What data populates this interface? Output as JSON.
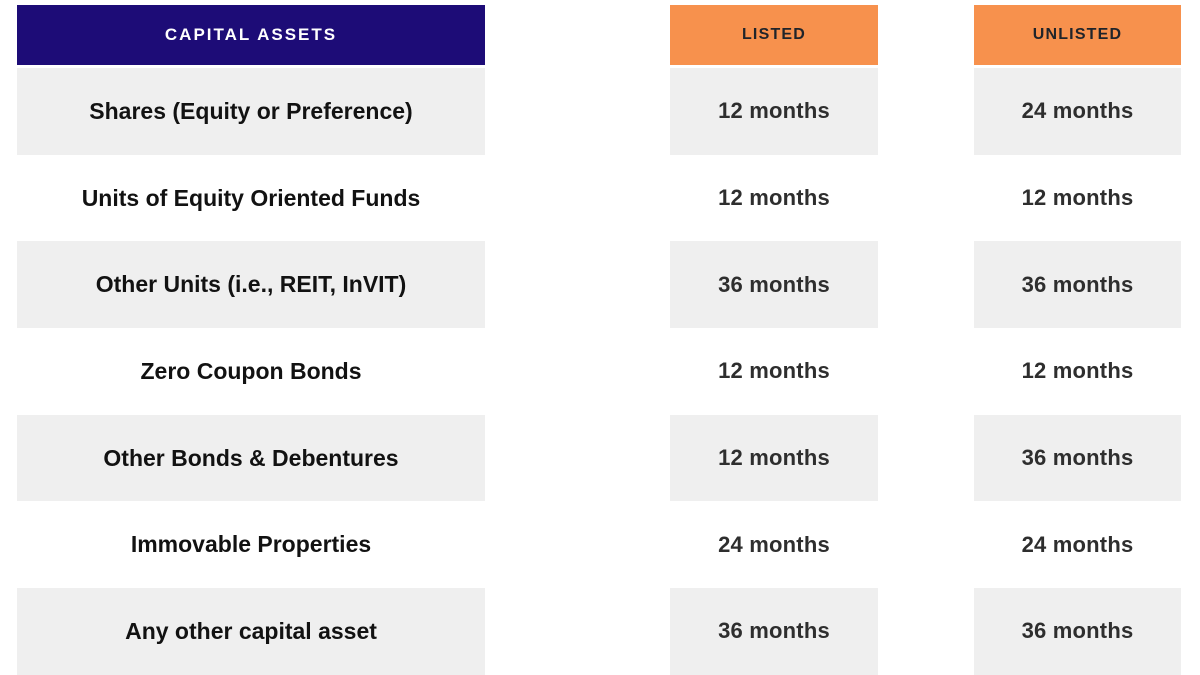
{
  "table": {
    "header": {
      "assets": "CAPITAL ASSETS",
      "listed": "LISTED",
      "unlisted": "UNLISTED"
    },
    "rows": [
      {
        "asset": "Shares (Equity or Preference)",
        "listed": "12 months",
        "unlisted": "24 months"
      },
      {
        "asset": "Units of Equity Oriented Funds",
        "listed": "12 months",
        "unlisted": "12 months"
      },
      {
        "asset": "Other Units (i.e., REIT, InVIT)",
        "listed": "36 months",
        "unlisted": "36 months"
      },
      {
        "asset": "Zero Coupon Bonds",
        "listed": "12 months",
        "unlisted": "12 months"
      },
      {
        "asset": "Other Bonds & Debentures",
        "listed": "12 months",
        "unlisted": "36 months"
      },
      {
        "asset": "Immovable Properties",
        "listed": "24 months",
        "unlisted": "24 months"
      },
      {
        "asset": "Any other capital asset",
        "listed": "36 months",
        "unlisted": "36 months"
      }
    ]
  },
  "colors": {
    "header_navy": "#1D0C77",
    "header_orange": "#F7914D",
    "row_grey": "#EFEFEF",
    "header_text_light": "#FFFFFF",
    "text_dark": "#121212"
  },
  "chart_data": {
    "type": "table",
    "title": "",
    "columns": [
      "CAPITAL ASSETS",
      "LISTED",
      "UNLISTED"
    ],
    "rows": [
      [
        "Shares (Equity or Preference)",
        "12 months",
        "24 months"
      ],
      [
        "Units of Equity Oriented Funds",
        "12 months",
        "12 months"
      ],
      [
        "Other Units (i.e., REIT, InVIT)",
        "36 months",
        "36 months"
      ],
      [
        "Zero Coupon Bonds",
        "12 months",
        "12 months"
      ],
      [
        "Other Bonds & Debentures",
        "12 months",
        "36 months"
      ],
      [
        "Immovable Properties",
        "24 months",
        "24 months"
      ],
      [
        "Any other capital asset",
        "36 months",
        "36 months"
      ]
    ],
    "layout_hints": {
      "row_shading": "alternating, first data row shaded",
      "header_colors": {
        "CAPITAL ASSETS": "#1D0C77",
        "LISTED": "#F7914D",
        "UNLISTED": "#F7914D"
      }
    }
  }
}
